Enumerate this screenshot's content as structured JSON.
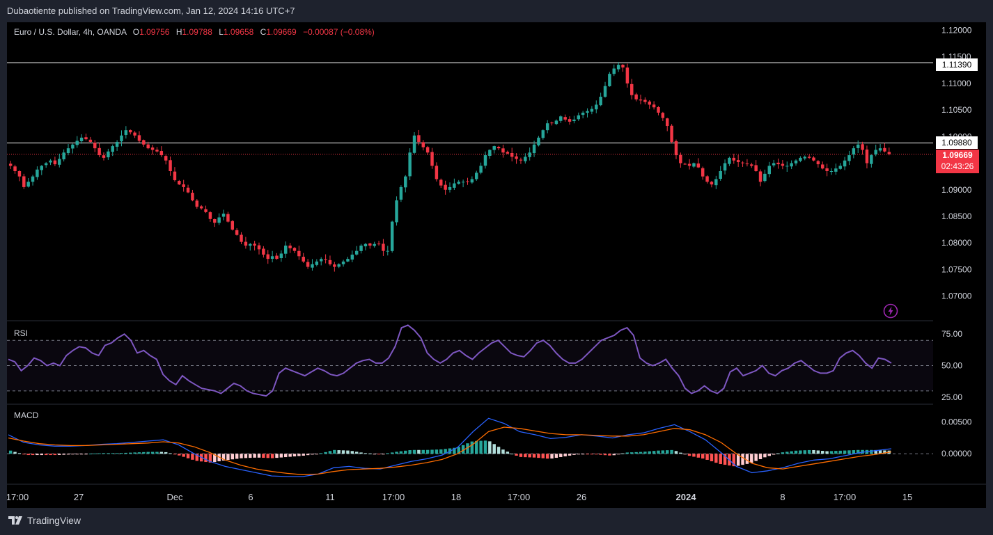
{
  "banner": "Dubaotiente published on TradingView.com, Jan 12, 2024 14:16 UTC+7",
  "legend": {
    "symbol": "Euro / U.S. Dollar, 4h, OANDA",
    "o_label": "O",
    "o": "1.09756",
    "h_label": "H",
    "h": "1.09788",
    "l_label": "L",
    "l": "1.09658",
    "c_label": "C",
    "c": "1.09669",
    "change": "−0.00087 (−0.08%)"
  },
  "price_boxes": {
    "line1": "1.11390",
    "line2": "1.09880",
    "last": "1.09669",
    "countdown": "02:43:26"
  },
  "rsi_label": "RSI",
  "macd_label": "MACD",
  "footer_logo": "TradingView",
  "colors": {
    "up": "#26a69a",
    "down": "#f23645",
    "rsi": "#7e57c2",
    "macd": "#2962ff",
    "signal": "#ff6d00",
    "background": "#000000",
    "frame": "#1e222d"
  },
  "chart_data": [
    {
      "type": "candlestick",
      "title": "Euro / U.S. Dollar, 4h, OANDA",
      "y_ticks": [
        "1.12000",
        "1.11500",
        "1.11000",
        "1.10500",
        "1.10000",
        "1.09500",
        "1.09000",
        "1.08500",
        "1.08000",
        "1.07500",
        "1.07000"
      ],
      "ylim": [
        1.0655,
        1.1215
      ],
      "x_ticks": [
        "17:00",
        "27",
        "Dec",
        "6",
        "11",
        "17:00",
        "18",
        "17:00",
        "26",
        "2024",
        "8",
        "17:00",
        "15"
      ],
      "horizontal_lines": [
        1.1139,
        1.0988
      ],
      "last_price": 1.09669,
      "close_path": [
        1.0945,
        1.0935,
        1.0925,
        1.0905,
        1.0915,
        1.0925,
        1.0938,
        1.0945,
        1.095,
        1.0955,
        1.0948,
        1.0958,
        1.097,
        1.0978,
        1.0985,
        1.0992,
        1.0998,
        1.0995,
        1.099,
        1.0978,
        1.0965,
        1.096,
        1.0972,
        1.0982,
        1.099,
        1.1002,
        1.1012,
        1.1008,
        1.1002,
        1.0992,
        1.0985,
        1.0978,
        1.0975,
        1.0972,
        1.0965,
        1.0955,
        1.0935,
        1.0918,
        1.091,
        1.0905,
        1.0895,
        1.088,
        1.0868,
        1.0865,
        1.0858,
        1.0845,
        1.0838,
        1.0848,
        1.0855,
        1.084,
        1.0825,
        1.0815,
        1.0802,
        1.0795,
        1.0798,
        1.0795,
        1.0788,
        1.0778,
        1.077,
        1.0775,
        1.077,
        1.078,
        1.0795,
        1.079,
        1.0785,
        1.0775,
        1.0765,
        1.0755,
        1.076,
        1.0765,
        1.077,
        1.0768,
        1.076,
        1.0755,
        1.076,
        1.0765,
        1.077,
        1.0778,
        1.0785,
        1.0795,
        1.0798,
        1.0795,
        1.0798,
        1.0798,
        1.0785,
        1.0785,
        1.084,
        1.088,
        1.0905,
        1.0925,
        1.097,
        1.1002,
        1.099,
        1.098,
        1.097,
        1.0945,
        1.092,
        1.0908,
        1.09,
        1.0905,
        1.0912,
        1.0915,
        1.0915,
        1.0915,
        1.092,
        1.0932,
        1.0945,
        1.0965,
        1.0975,
        1.0982,
        1.0978,
        1.097,
        1.0968,
        1.0962,
        1.0958,
        1.0955,
        1.0962,
        1.097,
        1.0985,
        1.0998,
        1.1012,
        1.1025,
        1.1025,
        1.103,
        1.1038,
        1.1032,
        1.1028,
        1.1032,
        1.104,
        1.1045,
        1.1048,
        1.1052,
        1.106,
        1.1075,
        1.1095,
        1.1118,
        1.1128,
        1.1135,
        1.113,
        1.11,
        1.1078,
        1.107,
        1.1068,
        1.1065,
        1.106,
        1.1055,
        1.1045,
        1.1035,
        1.102,
        1.099,
        1.0965,
        1.095,
        1.0948,
        1.0945,
        1.095,
        1.0942,
        1.0925,
        1.0915,
        1.091,
        1.092,
        1.0935,
        1.095,
        1.096,
        1.0955,
        1.0952,
        1.095,
        1.0948,
        1.0945,
        1.0935,
        1.0915,
        1.093,
        1.0945,
        1.095,
        1.0948,
        1.0945,
        1.0945,
        1.095,
        1.0955,
        1.096,
        1.0962,
        1.096,
        1.0955,
        1.0948,
        1.094,
        1.0935,
        1.0935,
        1.094,
        1.0945,
        1.0955,
        1.0965,
        1.0978,
        1.0985,
        1.0975,
        1.095,
        1.0965,
        1.0975,
        1.0978,
        1.0972,
        1.0967
      ]
    },
    {
      "type": "line",
      "title": "RSI",
      "y_ticks": [
        "75.00",
        "50.00",
        "25.00"
      ],
      "ylim": [
        20,
        85
      ],
      "bands": [
        70,
        50,
        30
      ],
      "series": [
        {
          "values": [
            55,
            53,
            46,
            50,
            56,
            54,
            50,
            52,
            50,
            58,
            62,
            65,
            64,
            60,
            58,
            66,
            68,
            72,
            75,
            70,
            60,
            62,
            58,
            55,
            43,
            38,
            35,
            42,
            38,
            35,
            32,
            31,
            30,
            28,
            32,
            36,
            34,
            30,
            28,
            27,
            26,
            30,
            44,
            48,
            46,
            44,
            42,
            45,
            48,
            46,
            43,
            42,
            44,
            48,
            52,
            54,
            55,
            52,
            52,
            56,
            65,
            80,
            82,
            78,
            72,
            60,
            55,
            52,
            55,
            60,
            62,
            58,
            55,
            60,
            64,
            68,
            70,
            65,
            60,
            58,
            57,
            62,
            68,
            70,
            66,
            60,
            55,
            52,
            52,
            55,
            60,
            65,
            70,
            72,
            74,
            78,
            80,
            74,
            56,
            52,
            50,
            52,
            55,
            48,
            42,
            32,
            28,
            30,
            34,
            30,
            28,
            32,
            45,
            48,
            42,
            44,
            46,
            50,
            44,
            42,
            46,
            48,
            52,
            54,
            50,
            46,
            44,
            44,
            46,
            56,
            60,
            62,
            58,
            52,
            48,
            56,
            55,
            52
          ]
        }
      ]
    },
    {
      "type": "bar+line",
      "title": "MACD",
      "y_ticks": [
        "0.00500",
        "0.00000"
      ],
      "ylim": [
        -0.0047,
        0.0075
      ],
      "macd": [
        0.003,
        0.0018,
        0.0014,
        0.0012,
        0.0012,
        0.0013,
        0.0015,
        0.0016,
        0.0018,
        0.002,
        0.0022,
        0.0014,
        0.0,
        -0.0012,
        -0.002,
        -0.0025,
        -0.003,
        -0.0035,
        -0.0036,
        -0.0036,
        -0.0032,
        -0.0022,
        -0.002,
        -0.0023,
        -0.0024,
        -0.0018,
        -0.0012,
        -0.0008,
        -0.0002,
        0.001,
        0.0035,
        0.0056,
        0.0048,
        0.0035,
        0.003,
        0.0024,
        0.0026,
        0.003,
        0.0028,
        0.0025,
        0.003,
        0.0033,
        0.004,
        0.0046,
        0.0035,
        0.0022,
        0.0002,
        -0.002,
        -0.003,
        -0.0027,
        -0.0022,
        -0.0015,
        -0.001,
        -0.0008,
        -0.0003,
        0.0002,
        0.0005,
        0.0008
      ],
      "signal": [
        0.0025,
        0.002,
        0.0016,
        0.0014,
        0.0013,
        0.0013,
        0.0014,
        0.0015,
        0.0016,
        0.0017,
        0.0019,
        0.0017,
        0.0011,
        0.0002,
        -0.001,
        -0.0018,
        -0.0024,
        -0.0028,
        -0.0031,
        -0.0033,
        -0.0032,
        -0.0028,
        -0.0025,
        -0.0024,
        -0.0023,
        -0.0021,
        -0.0018,
        -0.0014,
        -0.0009,
        0.0,
        0.0015,
        0.0035,
        0.0042,
        0.004,
        0.0036,
        0.0032,
        0.003,
        0.003,
        0.0029,
        0.0028,
        0.0028,
        0.003,
        0.0035,
        0.004,
        0.0038,
        0.003,
        0.0018,
        0.0,
        -0.0015,
        -0.0022,
        -0.0024,
        -0.002,
        -0.0016,
        -0.0012,
        -0.0008,
        -0.0004,
        -0.0001,
        0.0003
      ]
    }
  ]
}
